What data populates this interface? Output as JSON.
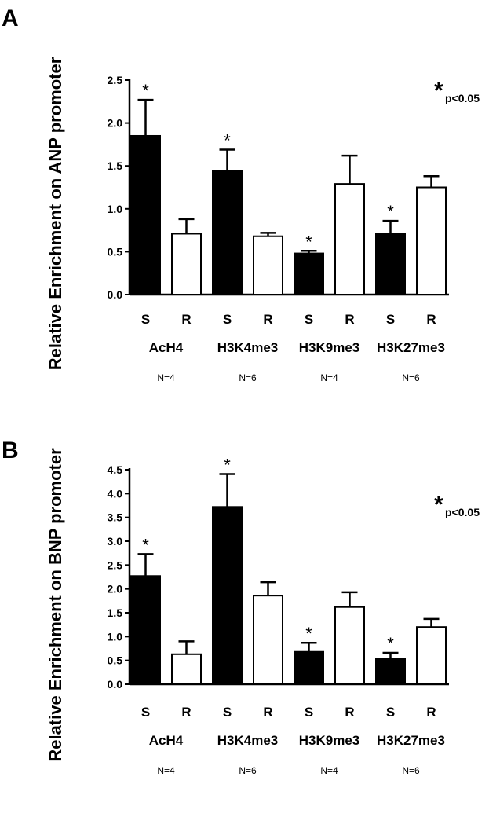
{
  "chart_data": [
    {
      "panel": "A",
      "type": "bar",
      "ylabel": "Relative Enrichment on ANP promoter",
      "ylim": [
        0,
        2.5
      ],
      "yticks": [
        "0.0",
        "0.5",
        "1.0",
        "1.5",
        "2.0",
        "2.5"
      ],
      "legend_symbol": "*",
      "legend_text": "p<0.05",
      "groups": [
        {
          "name": "AcH4",
          "n_label": "N=4"
        },
        {
          "name": "H3K4me3",
          "n_label": "N=6"
        },
        {
          "name": "H3K9me3",
          "n_label": "N=4"
        },
        {
          "name": "H3K27me3",
          "n_label": "N=6"
        }
      ],
      "bars": [
        {
          "group": "AcH4",
          "label": "S",
          "value": 1.85,
          "error": 0.42,
          "significant": true
        },
        {
          "group": "AcH4",
          "label": "R",
          "value": 0.71,
          "error": 0.17,
          "significant": false
        },
        {
          "group": "H3K4me3",
          "label": "S",
          "value": 1.44,
          "error": 0.25,
          "significant": true
        },
        {
          "group": "H3K4me3",
          "label": "R",
          "value": 0.68,
          "error": 0.04,
          "significant": false
        },
        {
          "group": "H3K9me3",
          "label": "S",
          "value": 0.48,
          "error": 0.03,
          "significant": true
        },
        {
          "group": "H3K9me3",
          "label": "R",
          "value": 1.29,
          "error": 0.33,
          "significant": false
        },
        {
          "group": "H3K27me3",
          "label": "S",
          "value": 0.71,
          "error": 0.15,
          "significant": true
        },
        {
          "group": "H3K27me3",
          "label": "R",
          "value": 1.25,
          "error": 0.13,
          "significant": false
        }
      ]
    },
    {
      "panel": "B",
      "type": "bar",
      "ylabel": "Relative Enrichment on BNP promoter",
      "ylim": [
        0,
        4.5
      ],
      "yticks": [
        "0.0",
        "0.5",
        "1.0",
        "1.5",
        "2.0",
        "2.5",
        "3.0",
        "3.5",
        "4.0",
        "4.5"
      ],
      "legend_symbol": "*",
      "legend_text": "p<0.05",
      "groups": [
        {
          "name": "AcH4",
          "n_label": "N=4"
        },
        {
          "name": "H3K4me3",
          "n_label": "N=6"
        },
        {
          "name": "H3K9me3",
          "n_label": "N=4"
        },
        {
          "name": "H3K27me3",
          "n_label": "N=6"
        }
      ],
      "bars": [
        {
          "group": "AcH4",
          "label": "S",
          "value": 2.27,
          "error": 0.46,
          "significant": true
        },
        {
          "group": "AcH4",
          "label": "R",
          "value": 0.63,
          "error": 0.27,
          "significant": false
        },
        {
          "group": "H3K4me3",
          "label": "S",
          "value": 3.72,
          "error": 0.69,
          "significant": true
        },
        {
          "group": "H3K4me3",
          "label": "R",
          "value": 1.86,
          "error": 0.28,
          "significant": false
        },
        {
          "group": "H3K9me3",
          "label": "S",
          "value": 0.68,
          "error": 0.19,
          "significant": true
        },
        {
          "group": "H3K9me3",
          "label": "R",
          "value": 1.62,
          "error": 0.31,
          "significant": false
        },
        {
          "group": "H3K27me3",
          "label": "S",
          "value": 0.54,
          "error": 0.12,
          "significant": true
        },
        {
          "group": "H3K27me3",
          "label": "R",
          "value": 1.2,
          "error": 0.17,
          "significant": false
        }
      ]
    }
  ]
}
